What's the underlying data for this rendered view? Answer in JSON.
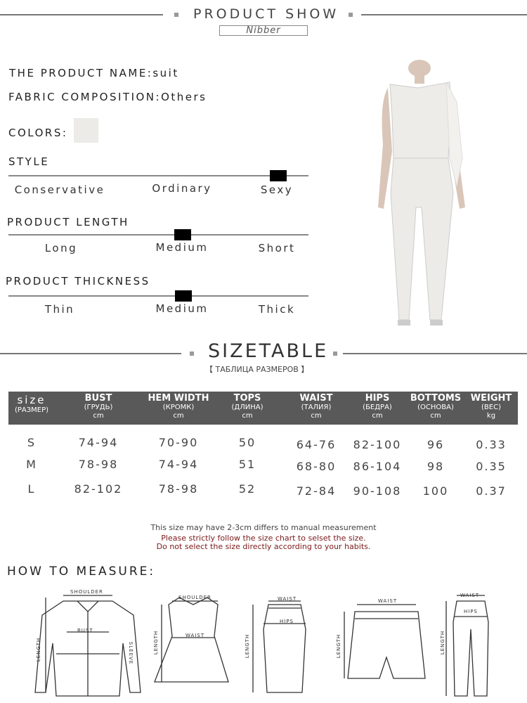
{
  "header": {
    "title": "PRODUCT SHOW",
    "brand": "Nibber"
  },
  "info": {
    "name_label": "THE PRODUCT NAME:",
    "name_value": "suit",
    "fabric_label": "FABRIC COMPOSITION:",
    "fabric_value": "Others",
    "colors_label": "COLORS:",
    "color_swatch": "#ecebe7"
  },
  "style": {
    "title": "STYLE",
    "options": [
      "Conservative",
      "Ordinary",
      "Sexy"
    ],
    "selected": "Sexy"
  },
  "length": {
    "title": "PRODUCT LENGTH",
    "options": [
      "Long",
      "Medium",
      "Short"
    ],
    "selected": "Medium"
  },
  "thickness": {
    "title": "PRODUCT THICKNESS",
    "options": [
      "Thin",
      "Medium",
      "Thick"
    ],
    "selected": "Medium"
  },
  "sizetable": {
    "title": "SIZETABLE",
    "subtitle": "【 ТАБЛИЦА РАЗМЕРОВ 】",
    "headers": [
      {
        "main": "size",
        "sub": "(РАЗМЕР)",
        "unit": ""
      },
      {
        "main": "BUST",
        "sub": "(ГРУДЬ)",
        "unit": "cm"
      },
      {
        "main": "HEM WIDTH",
        "sub": "(КРОМК)",
        "unit": "cm"
      },
      {
        "main": "TOPS",
        "sub": "(ДЛИНА)",
        "unit": "cm"
      },
      {
        "main": "WAIST",
        "sub": "(ТАЛИЯ)",
        "unit": "cm"
      },
      {
        "main": "HIPS",
        "sub": "(БЕДРА)",
        "unit": "cm"
      },
      {
        "main": "BOTTOMS",
        "sub": "(ОСНОВА)",
        "unit": "cm"
      },
      {
        "main": "WEIGHT",
        "sub": "(ВЕС)",
        "unit": "kg"
      }
    ],
    "rows": [
      [
        "S",
        "74-94",
        "70-90",
        "50",
        "64-76",
        "82-100",
        "96",
        "0.33"
      ],
      [
        "M",
        "78-98",
        "74-94",
        "51",
        "68-80",
        "86-104",
        "98",
        "0.35"
      ],
      [
        "L",
        "82-102",
        "78-98",
        "52",
        "72-84",
        "90-108",
        "100",
        "0.37"
      ]
    ],
    "note1": "This size may have 2-3cm differs to manual measurement",
    "note2": "Please strictly follow the size chart to selset the size.",
    "note3": "Do not select the size directly according to your habits."
  },
  "measure": {
    "title": "HOW TO MEASURE:",
    "labels": {
      "shoulder": "SHOULDER",
      "bust": "BUST",
      "length": "LENGTH",
      "sleeve": "SLEEVE",
      "waist": "WAIST",
      "hips": "HIPS"
    }
  }
}
